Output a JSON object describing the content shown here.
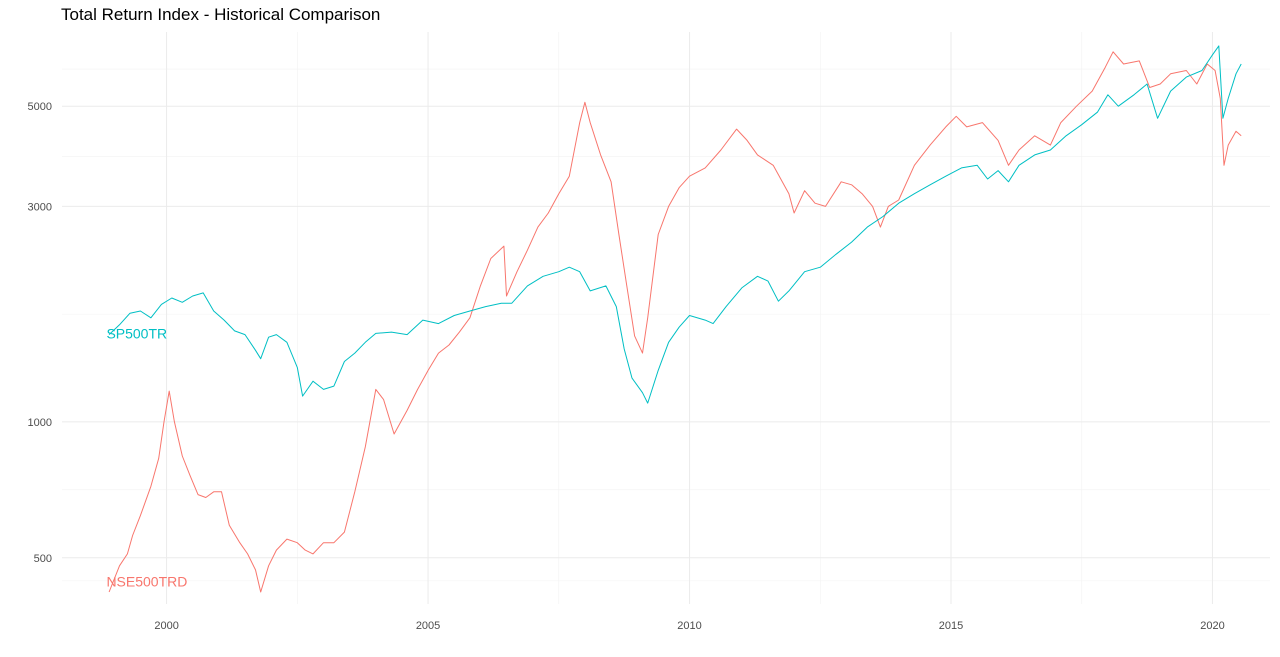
{
  "chart_data": {
    "type": "line",
    "title": "Total Return Index - Historical Comparison",
    "xlabel": "",
    "ylabel": "",
    "y_scale": "log",
    "xlim": [
      1998.0,
      2021.1
    ],
    "ylim": [
      395,
      7300
    ],
    "x_ticks": [
      2000,
      2005,
      2010,
      2015,
      2020
    ],
    "y_ticks": [
      500,
      1000,
      3000,
      5000
    ],
    "grid": true,
    "legend": "none",
    "series": [
      {
        "name": "NSE500TRD",
        "color": "#F8766D",
        "points": [
          [
            1998.9,
            420
          ],
          [
            1999.1,
            480
          ],
          [
            1999.25,
            510
          ],
          [
            1999.35,
            560
          ],
          [
            1999.5,
            620
          ],
          [
            1999.7,
            720
          ],
          [
            1999.85,
            830
          ],
          [
            1999.95,
            1000
          ],
          [
            2000.05,
            1170
          ],
          [
            2000.15,
            1000
          ],
          [
            2000.3,
            840
          ],
          [
            2000.45,
            760
          ],
          [
            2000.6,
            690
          ],
          [
            2000.75,
            680
          ],
          [
            2000.9,
            700
          ],
          [
            2001.05,
            700
          ],
          [
            2001.2,
            590
          ],
          [
            2001.4,
            540
          ],
          [
            2001.55,
            510
          ],
          [
            2001.7,
            470
          ],
          [
            2001.8,
            420
          ],
          [
            2001.95,
            480
          ],
          [
            2002.1,
            520
          ],
          [
            2002.3,
            550
          ],
          [
            2002.5,
            540
          ],
          [
            2002.65,
            520
          ],
          [
            2002.8,
            510
          ],
          [
            2003.0,
            540
          ],
          [
            2003.2,
            540
          ],
          [
            2003.4,
            570
          ],
          [
            2003.6,
            700
          ],
          [
            2003.8,
            880
          ],
          [
            2004.0,
            1180
          ],
          [
            2004.15,
            1120
          ],
          [
            2004.35,
            940
          ],
          [
            2004.6,
            1060
          ],
          [
            2004.8,
            1180
          ],
          [
            2005.0,
            1300
          ],
          [
            2005.2,
            1420
          ],
          [
            2005.4,
            1480
          ],
          [
            2005.6,
            1580
          ],
          [
            2005.8,
            1700
          ],
          [
            2006.0,
            2000
          ],
          [
            2006.2,
            2300
          ],
          [
            2006.45,
            2450
          ],
          [
            2006.5,
            1900
          ],
          [
            2006.7,
            2150
          ],
          [
            2006.9,
            2400
          ],
          [
            2007.1,
            2700
          ],
          [
            2007.3,
            2900
          ],
          [
            2007.5,
            3200
          ],
          [
            2007.7,
            3500
          ],
          [
            2007.9,
            4600
          ],
          [
            2008.0,
            5100
          ],
          [
            2008.1,
            4600
          ],
          [
            2008.3,
            3900
          ],
          [
            2008.5,
            3400
          ],
          [
            2008.65,
            2600
          ],
          [
            2008.8,
            2000
          ],
          [
            2008.95,
            1550
          ],
          [
            2009.1,
            1420
          ],
          [
            2009.2,
            1700
          ],
          [
            2009.4,
            2600
          ],
          [
            2009.6,
            3000
          ],
          [
            2009.8,
            3300
          ],
          [
            2010.0,
            3500
          ],
          [
            2010.3,
            3650
          ],
          [
            2010.6,
            4000
          ],
          [
            2010.9,
            4450
          ],
          [
            2011.1,
            4200
          ],
          [
            2011.3,
            3900
          ],
          [
            2011.6,
            3700
          ],
          [
            2011.9,
            3200
          ],
          [
            2012.0,
            2900
          ],
          [
            2012.2,
            3250
          ],
          [
            2012.4,
            3050
          ],
          [
            2012.6,
            3000
          ],
          [
            2012.9,
            3400
          ],
          [
            2013.1,
            3350
          ],
          [
            2013.3,
            3200
          ],
          [
            2013.5,
            3000
          ],
          [
            2013.65,
            2700
          ],
          [
            2013.8,
            3000
          ],
          [
            2014.0,
            3100
          ],
          [
            2014.3,
            3700
          ],
          [
            2014.6,
            4100
          ],
          [
            2014.9,
            4500
          ],
          [
            2015.1,
            4750
          ],
          [
            2015.3,
            4500
          ],
          [
            2015.6,
            4600
          ],
          [
            2015.9,
            4200
          ],
          [
            2016.1,
            3700
          ],
          [
            2016.3,
            4000
          ],
          [
            2016.6,
            4300
          ],
          [
            2016.9,
            4100
          ],
          [
            2017.1,
            4600
          ],
          [
            2017.4,
            5000
          ],
          [
            2017.7,
            5400
          ],
          [
            2017.95,
            6100
          ],
          [
            2018.1,
            6600
          ],
          [
            2018.3,
            6200
          ],
          [
            2018.6,
            6300
          ],
          [
            2018.8,
            5500
          ],
          [
            2019.0,
            5600
          ],
          [
            2019.2,
            5900
          ],
          [
            2019.5,
            6000
          ],
          [
            2019.7,
            5600
          ],
          [
            2019.9,
            6200
          ],
          [
            2020.05,
            6000
          ],
          [
            2020.15,
            5200
          ],
          [
            2020.22,
            3700
          ],
          [
            2020.3,
            4100
          ],
          [
            2020.45,
            4400
          ],
          [
            2020.55,
            4300
          ]
        ]
      },
      {
        "name": "SP500TR",
        "color": "#00BFC4",
        "points": [
          [
            1998.9,
            1560
          ],
          [
            1999.1,
            1640
          ],
          [
            1999.3,
            1740
          ],
          [
            1999.5,
            1760
          ],
          [
            1999.7,
            1700
          ],
          [
            1999.9,
            1820
          ],
          [
            2000.1,
            1880
          ],
          [
            2000.3,
            1840
          ],
          [
            2000.5,
            1900
          ],
          [
            2000.7,
            1930
          ],
          [
            2000.9,
            1760
          ],
          [
            2001.1,
            1680
          ],
          [
            2001.3,
            1590
          ],
          [
            2001.5,
            1560
          ],
          [
            2001.7,
            1440
          ],
          [
            2001.8,
            1380
          ],
          [
            2001.95,
            1540
          ],
          [
            2002.1,
            1560
          ],
          [
            2002.3,
            1500
          ],
          [
            2002.5,
            1320
          ],
          [
            2002.6,
            1140
          ],
          [
            2002.8,
            1230
          ],
          [
            2003.0,
            1180
          ],
          [
            2003.2,
            1200
          ],
          [
            2003.4,
            1360
          ],
          [
            2003.6,
            1420
          ],
          [
            2003.8,
            1500
          ],
          [
            2004.0,
            1570
          ],
          [
            2004.3,
            1580
          ],
          [
            2004.6,
            1560
          ],
          [
            2004.9,
            1680
          ],
          [
            2005.2,
            1650
          ],
          [
            2005.5,
            1720
          ],
          [
            2005.8,
            1760
          ],
          [
            2006.1,
            1800
          ],
          [
            2006.4,
            1830
          ],
          [
            2006.6,
            1830
          ],
          [
            2006.9,
            2000
          ],
          [
            2007.2,
            2100
          ],
          [
            2007.5,
            2150
          ],
          [
            2007.7,
            2200
          ],
          [
            2007.9,
            2150
          ],
          [
            2008.1,
            1950
          ],
          [
            2008.4,
            2000
          ],
          [
            2008.6,
            1800
          ],
          [
            2008.75,
            1450
          ],
          [
            2008.9,
            1250
          ],
          [
            2009.1,
            1160
          ],
          [
            2009.2,
            1100
          ],
          [
            2009.4,
            1300
          ],
          [
            2009.6,
            1500
          ],
          [
            2009.8,
            1620
          ],
          [
            2010.0,
            1720
          ],
          [
            2010.3,
            1680
          ],
          [
            2010.45,
            1650
          ],
          [
            2010.7,
            1800
          ],
          [
            2011.0,
            1980
          ],
          [
            2011.3,
            2100
          ],
          [
            2011.5,
            2050
          ],
          [
            2011.7,
            1850
          ],
          [
            2011.9,
            1950
          ],
          [
            2012.2,
            2150
          ],
          [
            2012.5,
            2200
          ],
          [
            2012.8,
            2350
          ],
          [
            2013.1,
            2500
          ],
          [
            2013.4,
            2700
          ],
          [
            2013.7,
            2850
          ],
          [
            2014.0,
            3050
          ],
          [
            2014.3,
            3200
          ],
          [
            2014.6,
            3350
          ],
          [
            2014.9,
            3500
          ],
          [
            2015.2,
            3650
          ],
          [
            2015.5,
            3700
          ],
          [
            2015.7,
            3450
          ],
          [
            2015.9,
            3600
          ],
          [
            2016.1,
            3400
          ],
          [
            2016.3,
            3700
          ],
          [
            2016.6,
            3900
          ],
          [
            2016.9,
            4000
          ],
          [
            2017.2,
            4300
          ],
          [
            2017.5,
            4550
          ],
          [
            2017.8,
            4850
          ],
          [
            2018.0,
            5300
          ],
          [
            2018.2,
            5000
          ],
          [
            2018.5,
            5300
          ],
          [
            2018.75,
            5600
          ],
          [
            2018.95,
            4700
          ],
          [
            2019.2,
            5400
          ],
          [
            2019.5,
            5800
          ],
          [
            2019.8,
            6000
          ],
          [
            2020.0,
            6500
          ],
          [
            2020.12,
            6800
          ],
          [
            2020.2,
            4700
          ],
          [
            2020.3,
            5200
          ],
          [
            2020.45,
            5900
          ],
          [
            2020.55,
            6200
          ]
        ]
      }
    ],
    "annotations": [
      {
        "text": "SP500TR",
        "x": 1998.85,
        "y": 1530,
        "color": "#00BFC4"
      },
      {
        "text": "NSE500TRD",
        "x": 1998.85,
        "y": 432,
        "color": "#F8766D"
      }
    ]
  }
}
